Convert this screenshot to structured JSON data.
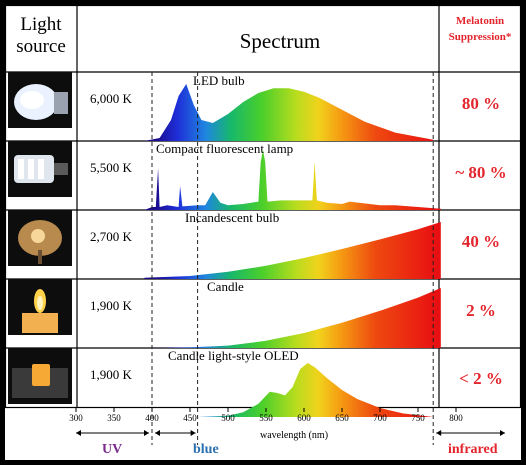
{
  "header": {
    "light_source": "Light source",
    "spectrum": "Spectrum",
    "melatonin": "Melatonin Suppression*"
  },
  "rows": [
    {
      "name": "LED bulb",
      "temperature": "6,000 K",
      "suppression": "80 %"
    },
    {
      "name": "Compact fluorescent lamp",
      "temperature": "5,500 K",
      "suppression": "~ 80 %"
    },
    {
      "name": "Incandescent bulb",
      "temperature": "2,700 K",
      "suppression": "40 %"
    },
    {
      "name": "Candle",
      "temperature": "1,900 K",
      "suppression": "2 %"
    },
    {
      "name": "Candle light-style OLED",
      "temperature": "1,900 K",
      "suppression": "< 2 %"
    }
  ],
  "icons": [
    "led-bulb-photo",
    "fluorescent-lamp-photo",
    "incandescent-bulb-photo",
    "candle-photo",
    "oled-light-photo"
  ],
  "colors": {
    "accent_red": "#e3262d",
    "uv": "#7a2a8c",
    "blue": "#2a6fb0",
    "infrared": "#e3262d"
  },
  "chart_data": {
    "type": "area",
    "xlabel": "wavelength (nm)",
    "xlim": [
      300,
      800
    ],
    "xticks": [
      "300",
      "350",
      "400",
      "450",
      "500",
      "550",
      "600",
      "650",
      "700",
      "750",
      "800"
    ],
    "region_boundaries_nm": [
      400,
      460,
      770
    ],
    "regions": [
      {
        "label": "UV",
        "range_nm": [
          300,
          400
        ]
      },
      {
        "label": "blue",
        "range_nm": [
          400,
          460
        ]
      },
      {
        "label": "infrared",
        "range_nm": [
          770,
          800
        ]
      }
    ],
    "series": [
      {
        "name": "LED bulb",
        "x": [
          390,
          410,
          425,
          435,
          445,
          455,
          465,
          480,
          500,
          520,
          540,
          560,
          580,
          600,
          620,
          650,
          680,
          720,
          770
        ],
        "y": [
          0,
          0.05,
          0.35,
          0.75,
          0.95,
          0.6,
          0.35,
          0.3,
          0.45,
          0.65,
          0.8,
          0.88,
          0.88,
          0.82,
          0.72,
          0.52,
          0.32,
          0.14,
          0.02
        ]
      },
      {
        "name": "Compact fluorescent lamp",
        "x": [
          390,
          400,
          405,
          408,
          410,
          420,
          435,
          437,
          440,
          460,
          470,
          480,
          490,
          500,
          520,
          540,
          543,
          546,
          549,
          552,
          570,
          590,
          600,
          611,
          614,
          617,
          630,
          650,
          660,
          700,
          720,
          780
        ],
        "y": [
          0,
          0.05,
          0.05,
          0.7,
          0.05,
          0.08,
          0.05,
          0.4,
          0.06,
          0.08,
          0.08,
          0.3,
          0.12,
          0.08,
          0.1,
          0.14,
          0.8,
          1.0,
          0.8,
          0.14,
          0.16,
          0.16,
          0.16,
          0.16,
          0.8,
          0.16,
          0.12,
          0.1,
          0.14,
          0.08,
          0.08,
          0.02
        ]
      },
      {
        "name": "Incandescent bulb",
        "x": [
          390,
          450,
          500,
          550,
          600,
          650,
          700,
          750,
          780
        ],
        "y": [
          0.02,
          0.05,
          0.12,
          0.22,
          0.35,
          0.5,
          0.66,
          0.83,
          0.95
        ]
      },
      {
        "name": "Candle",
        "x": [
          400,
          450,
          500,
          550,
          600,
          650,
          700,
          750,
          780
        ],
        "y": [
          0,
          0.01,
          0.04,
          0.12,
          0.25,
          0.42,
          0.62,
          0.84,
          1.0
        ]
      },
      {
        "name": "Candle light-style OLED",
        "x": [
          400,
          460,
          500,
          520,
          540,
          555,
          565,
          575,
          585,
          595,
          605,
          615,
          630,
          650,
          670,
          700,
          730,
          770
        ],
        "y": [
          0,
          0,
          0.02,
          0.08,
          0.22,
          0.42,
          0.4,
          0.36,
          0.5,
          0.8,
          0.9,
          0.82,
          0.65,
          0.45,
          0.3,
          0.15,
          0.06,
          0
        ]
      }
    ]
  }
}
